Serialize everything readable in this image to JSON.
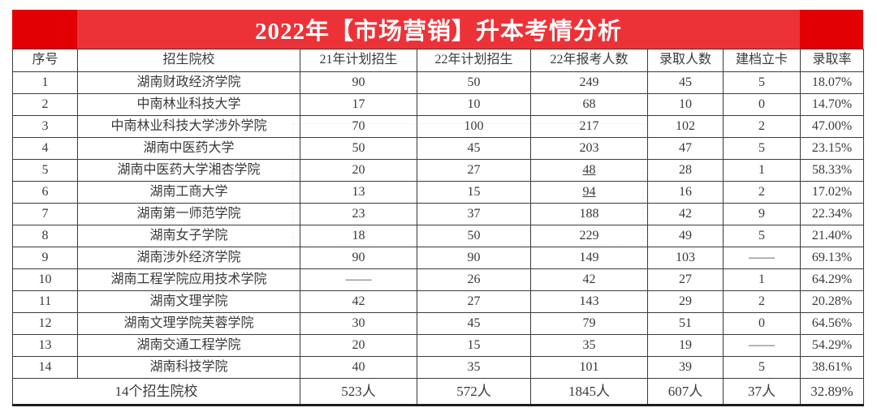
{
  "colors": {
    "accent_red": "#e30005",
    "title_red": "#ec3237",
    "border": "#3b3b3b",
    "text": "#3a3a3a"
  },
  "title": {
    "text": "2022年【市场营销】升本考情分析"
  },
  "chart_data": {
    "type": "table",
    "title": "2022年【市场营销】升本考情分析",
    "columns": [
      "序号",
      "招生院校",
      "21年计划招生",
      "22年计划招生",
      "22年报考人数",
      "录取人数",
      "建档立卡",
      "录取率"
    ],
    "column_keys": [
      "no",
      "school",
      "plan21",
      "plan22",
      "applicants22",
      "admitted",
      "jdlk",
      "rate"
    ],
    "rows": [
      [
        "1",
        "湖南财政经济学院",
        "90",
        "50",
        "249",
        "45",
        "5",
        "18.07%"
      ],
      [
        "2",
        "中南林业科技大学",
        "17",
        "10",
        "68",
        "10",
        "0",
        "14.70%"
      ],
      [
        "3",
        "中南林业科技大学涉外学院",
        "70",
        "100",
        "217",
        "102",
        "2",
        "47.00%"
      ],
      [
        "4",
        "湖南中医药大学",
        "50",
        "45",
        "203",
        "47",
        "5",
        "23.15%"
      ],
      [
        "5",
        "湖南中医药大学湘杏学院",
        "20",
        "27",
        "48",
        "28",
        "1",
        "58.33%"
      ],
      [
        "6",
        "湖南工商大学",
        "13",
        "15",
        "94",
        "16",
        "2",
        "17.02%"
      ],
      [
        "7",
        "湖南第一师范学院",
        "23",
        "37",
        "188",
        "42",
        "9",
        "22.34%"
      ],
      [
        "8",
        "湖南女子学院",
        "18",
        "50",
        "229",
        "49",
        "5",
        "21.40%"
      ],
      [
        "9",
        "湖南涉外经济学院",
        "90",
        "90",
        "149",
        "103",
        "——",
        "69.13%"
      ],
      [
        "10",
        "湖南工程学院应用技术学院",
        "——",
        "26",
        "42",
        "27",
        "1",
        "64.29%"
      ],
      [
        "11",
        "湖南文理学院",
        "42",
        "27",
        "143",
        "29",
        "2",
        "20.28%"
      ],
      [
        "12",
        "湖南文理学院芙蓉学院",
        "30",
        "45",
        "79",
        "51",
        "0",
        "64.56%"
      ],
      [
        "13",
        "湖南交通工程学院",
        "20",
        "15",
        "35",
        "19",
        "——",
        "54.29%"
      ],
      [
        "14",
        "湖南科技学院",
        "40",
        "35",
        "101",
        "39",
        "5",
        "38.61%"
      ]
    ],
    "underlined_cells": [
      [
        4,
        4
      ],
      [
        5,
        4
      ]
    ],
    "summary_row": [
      "14个招生院校",
      "523人",
      "572人",
      "1845人",
      "607人",
      "37人",
      "32.89%"
    ]
  }
}
